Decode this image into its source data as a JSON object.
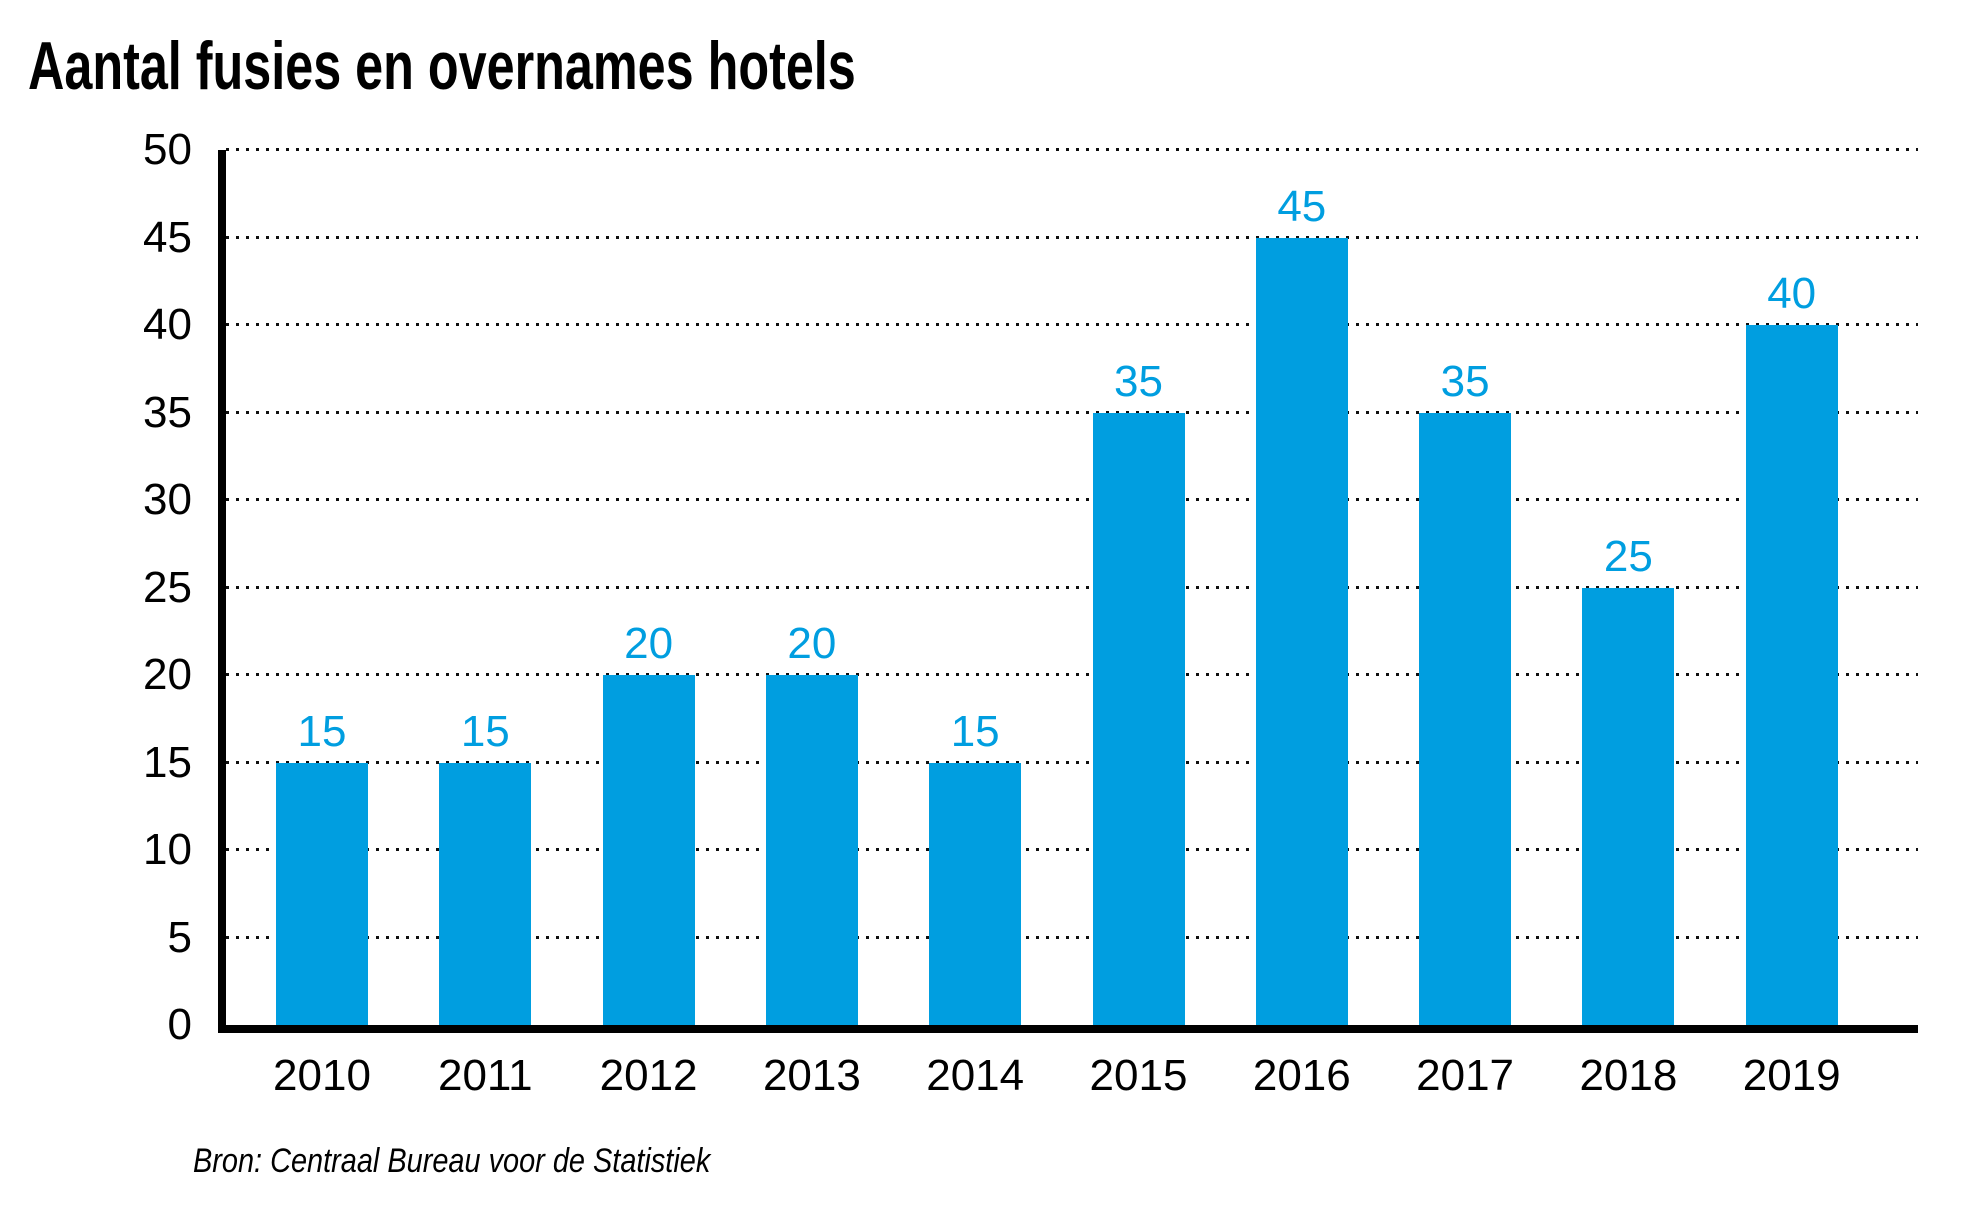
{
  "title": "Aantal fusies en overnames hotels",
  "source_note": "Bron: Centraal Bureau voor de Statistiek",
  "colors": {
    "bar": "#009ee0",
    "bar_label": "#009ee0",
    "axis": "#000000",
    "gridline": "#111111",
    "text": "#000000",
    "background": "#ffffff"
  },
  "chart_data": {
    "type": "bar",
    "title": "Aantal fusies en overnames hotels",
    "categories": [
      "2010",
      "2011",
      "2012",
      "2013",
      "2014",
      "2015",
      "2016",
      "2017",
      "2018",
      "2019"
    ],
    "values": [
      15,
      15,
      20,
      20,
      15,
      35,
      45,
      35,
      25,
      40
    ],
    "series_name": "Aantal fusies en overnames",
    "xlabel": "",
    "ylabel": "",
    "ylim": [
      0,
      50
    ],
    "yticks": [
      0,
      5,
      10,
      15,
      20,
      25,
      30,
      35,
      40,
      45,
      50
    ],
    "grid": "horizontal-dotted",
    "bar_value_labels_shown": true,
    "legend": "none",
    "source": "Bron: Centraal Bureau voor de Statistiek"
  }
}
